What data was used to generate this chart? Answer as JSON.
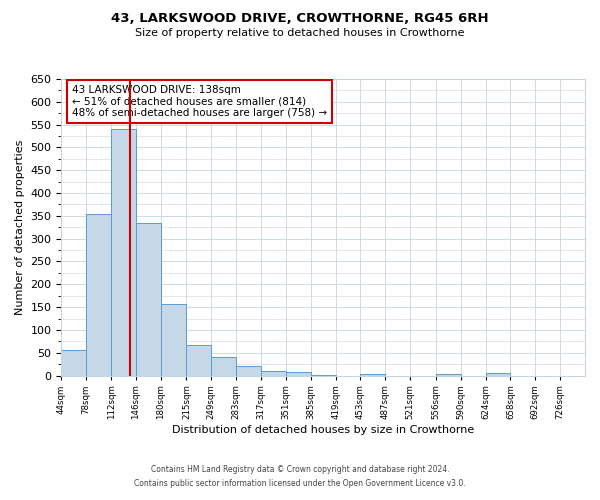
{
  "title1": "43, LARKSWOOD DRIVE, CROWTHORNE, RG45 6RH",
  "title2": "Size of property relative to detached houses in Crowthorne",
  "xlabel": "Distribution of detached houses by size in Crowthorne",
  "ylabel": "Number of detached properties",
  "bar_values": [
    57,
    353,
    540,
    335,
    157,
    67,
    40,
    22,
    10,
    8,
    2,
    0,
    3,
    0,
    0,
    3,
    0,
    5,
    0,
    0
  ],
  "bin_labels": [
    "44sqm",
    "78sqm",
    "112sqm",
    "146sqm",
    "180sqm",
    "215sqm",
    "249sqm",
    "283sqm",
    "317sqm",
    "351sqm",
    "385sqm",
    "419sqm",
    "453sqm",
    "487sqm",
    "521sqm",
    "556sqm",
    "590sqm",
    "624sqm",
    "658sqm",
    "692sqm",
    "726sqm"
  ],
  "bar_edges": [
    44,
    78,
    112,
    146,
    180,
    215,
    249,
    283,
    317,
    351,
    385,
    419,
    453,
    487,
    521,
    556,
    590,
    624,
    658,
    692,
    726
  ],
  "bar_color": "#c5d8e8",
  "bar_edge_color": "#5b9bd5",
  "property_size": 138,
  "vline_color": "#cc0000",
  "ylim": [
    0,
    650
  ],
  "yticks": [
    0,
    50,
    100,
    150,
    200,
    250,
    300,
    350,
    400,
    450,
    500,
    550,
    600,
    650
  ],
  "annotation_title": "43 LARKSWOOD DRIVE: 138sqm",
  "annotation_line1": "← 51% of detached houses are smaller (814)",
  "annotation_line2": "48% of semi-detached houses are larger (758) →",
  "annotation_box_color": "#ffffff",
  "annotation_box_edge": "#cc0000",
  "footer1": "Contains HM Land Registry data © Crown copyright and database right 2024.",
  "footer2": "Contains public sector information licensed under the Open Government Licence v3.0.",
  "bg_color": "#ffffff",
  "grid_color": "#c8d4e0"
}
